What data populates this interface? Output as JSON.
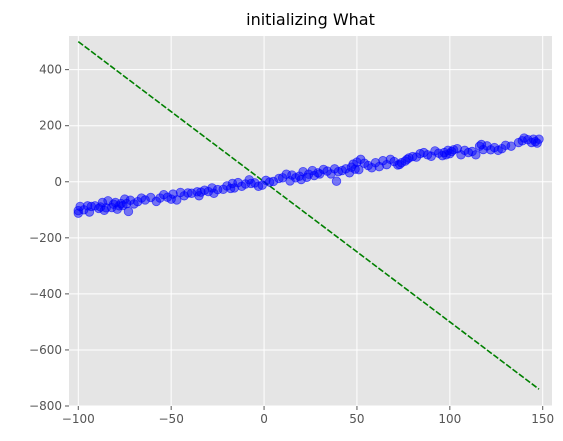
{
  "chart_data": {
    "type": "scatter",
    "title": "initializing What",
    "xlabel": "",
    "ylabel": "",
    "xlim": [
      -105,
      155
    ],
    "ylim": [
      -800,
      520
    ],
    "x_ticks": [
      -100,
      -50,
      0,
      50,
      100,
      150
    ],
    "x_tick_labels": [
      "−100",
      "−50",
      "0",
      "50",
      "100",
      "150"
    ],
    "y_ticks": [
      -800,
      -600,
      -400,
      -200,
      0,
      200,
      400
    ],
    "y_tick_labels": [
      "−800",
      "−600",
      "−400",
      "−200",
      "0",
      "200",
      "400"
    ],
    "grid": true,
    "style": "ggplot",
    "colors": {
      "background": "#E5E5E5",
      "grid": "#FFFFFF",
      "points": "#0000FF",
      "line": "#008000",
      "text": "#555555",
      "title": "#000000"
    },
    "series": [
      {
        "kind": "scatter",
        "points": [
          [
            -100,
            -112
          ],
          [
            -100,
            -103
          ],
          [
            -99,
            -88
          ],
          [
            -97,
            -100
          ],
          [
            -95,
            -86
          ],
          [
            -94,
            -108
          ],
          [
            -93,
            -88
          ],
          [
            -91,
            -86
          ],
          [
            -89,
            -95
          ],
          [
            -88,
            -90
          ],
          [
            -87,
            -74
          ],
          [
            -86,
            -102
          ],
          [
            -85,
            -93
          ],
          [
            -84,
            -68
          ],
          [
            -82,
            -92
          ],
          [
            -81,
            -80
          ],
          [
            -80,
            -74
          ],
          [
            -79,
            -98
          ],
          [
            -78,
            -86
          ],
          [
            -77,
            -78
          ],
          [
            -76,
            -85
          ],
          [
            -75,
            -62
          ],
          [
            -74,
            -78
          ],
          [
            -73,
            -106
          ],
          [
            -72,
            -66
          ],
          [
            -70,
            -79
          ],
          [
            -68,
            -71
          ],
          [
            -66,
            -58
          ],
          [
            -64,
            -65
          ],
          [
            -61,
            -56
          ],
          [
            -58,
            -70
          ],
          [
            -56,
            -58
          ],
          [
            -54,
            -46
          ],
          [
            -52,
            -55
          ],
          [
            -50,
            -62
          ],
          [
            -49,
            -44
          ],
          [
            -47,
            -65
          ],
          [
            -45,
            -38
          ],
          [
            -43,
            -50
          ],
          [
            -41,
            -40
          ],
          [
            -39,
            -41
          ],
          [
            -36,
            -36
          ],
          [
            -35,
            -50
          ],
          [
            -34,
            -37
          ],
          [
            -32,
            -30
          ],
          [
            -30,
            -35
          ],
          [
            -28,
            -22
          ],
          [
            -27,
            -41
          ],
          [
            -25,
            -28
          ],
          [
            -22,
            -27
          ],
          [
            -20,
            -15
          ],
          [
            -18,
            -24
          ],
          [
            -17,
            -6
          ],
          [
            -16,
            -22
          ],
          [
            -14,
            -3
          ],
          [
            -12,
            -16
          ],
          [
            -10,
            -8
          ],
          [
            -8,
            7
          ],
          [
            -7,
            -6
          ],
          [
            -5,
            -4
          ],
          [
            -3,
            -16
          ],
          [
            -1,
            -12
          ],
          [
            1,
            5
          ],
          [
            3,
            -1
          ],
          [
            5,
            1
          ],
          [
            8,
            12
          ],
          [
            10,
            14
          ],
          [
            12,
            27
          ],
          [
            14,
            3
          ],
          [
            15,
            24
          ],
          [
            17,
            14
          ],
          [
            19,
            20
          ],
          [
            20,
            8
          ],
          [
            21,
            36
          ],
          [
            23,
            16
          ],
          [
            24,
            27
          ],
          [
            26,
            40
          ],
          [
            27,
            22
          ],
          [
            29,
            32
          ],
          [
            30,
            28
          ],
          [
            32,
            44
          ],
          [
            34,
            38
          ],
          [
            36,
            28
          ],
          [
            38,
            46
          ],
          [
            39,
            2
          ],
          [
            40,
            36
          ],
          [
            42,
            40
          ],
          [
            44,
            46
          ],
          [
            46,
            32
          ],
          [
            47,
            52
          ],
          [
            48,
            63
          ],
          [
            49,
            45
          ],
          [
            50,
            70
          ],
          [
            51,
            43
          ],
          [
            52,
            80
          ],
          [
            54,
            66
          ],
          [
            56,
            58
          ],
          [
            58,
            50
          ],
          [
            60,
            68
          ],
          [
            62,
            54
          ],
          [
            64,
            75
          ],
          [
            66,
            61
          ],
          [
            68,
            80
          ],
          [
            70,
            72
          ],
          [
            72,
            60
          ],
          [
            73,
            62
          ],
          [
            74,
            68
          ],
          [
            76,
            74
          ],
          [
            77,
            80
          ],
          [
            78,
            85
          ],
          [
            80,
            90
          ],
          [
            82,
            88
          ],
          [
            84,
            100
          ],
          [
            86,
            104
          ],
          [
            88,
            96
          ],
          [
            90,
            91
          ],
          [
            92,
            110
          ],
          [
            94,
            102
          ],
          [
            96,
            93
          ],
          [
            97,
            104
          ],
          [
            98,
            96
          ],
          [
            99,
            112
          ],
          [
            100,
            100
          ],
          [
            101,
            108
          ],
          [
            102,
            114
          ],
          [
            104,
            118
          ],
          [
            106,
            96
          ],
          [
            108,
            112
          ],
          [
            110,
            104
          ],
          [
            112,
            108
          ],
          [
            114,
            96
          ],
          [
            116,
            127
          ],
          [
            117,
            133
          ],
          [
            118,
            115
          ],
          [
            120,
            128
          ],
          [
            122,
            114
          ],
          [
            124,
            122
          ],
          [
            126,
            112
          ],
          [
            128,
            118
          ],
          [
            130,
            130
          ],
          [
            133,
            127
          ],
          [
            137,
            140
          ],
          [
            139,
            146
          ],
          [
            140,
            156
          ],
          [
            142,
            150
          ],
          [
            144,
            140
          ],
          [
            145,
            152
          ],
          [
            146,
            143
          ],
          [
            147,
            138
          ],
          [
            148,
            152
          ]
        ]
      },
      {
        "kind": "line",
        "style": "dashed",
        "points": [
          [
            -100,
            500
          ],
          [
            148,
            -740
          ]
        ]
      }
    ]
  }
}
